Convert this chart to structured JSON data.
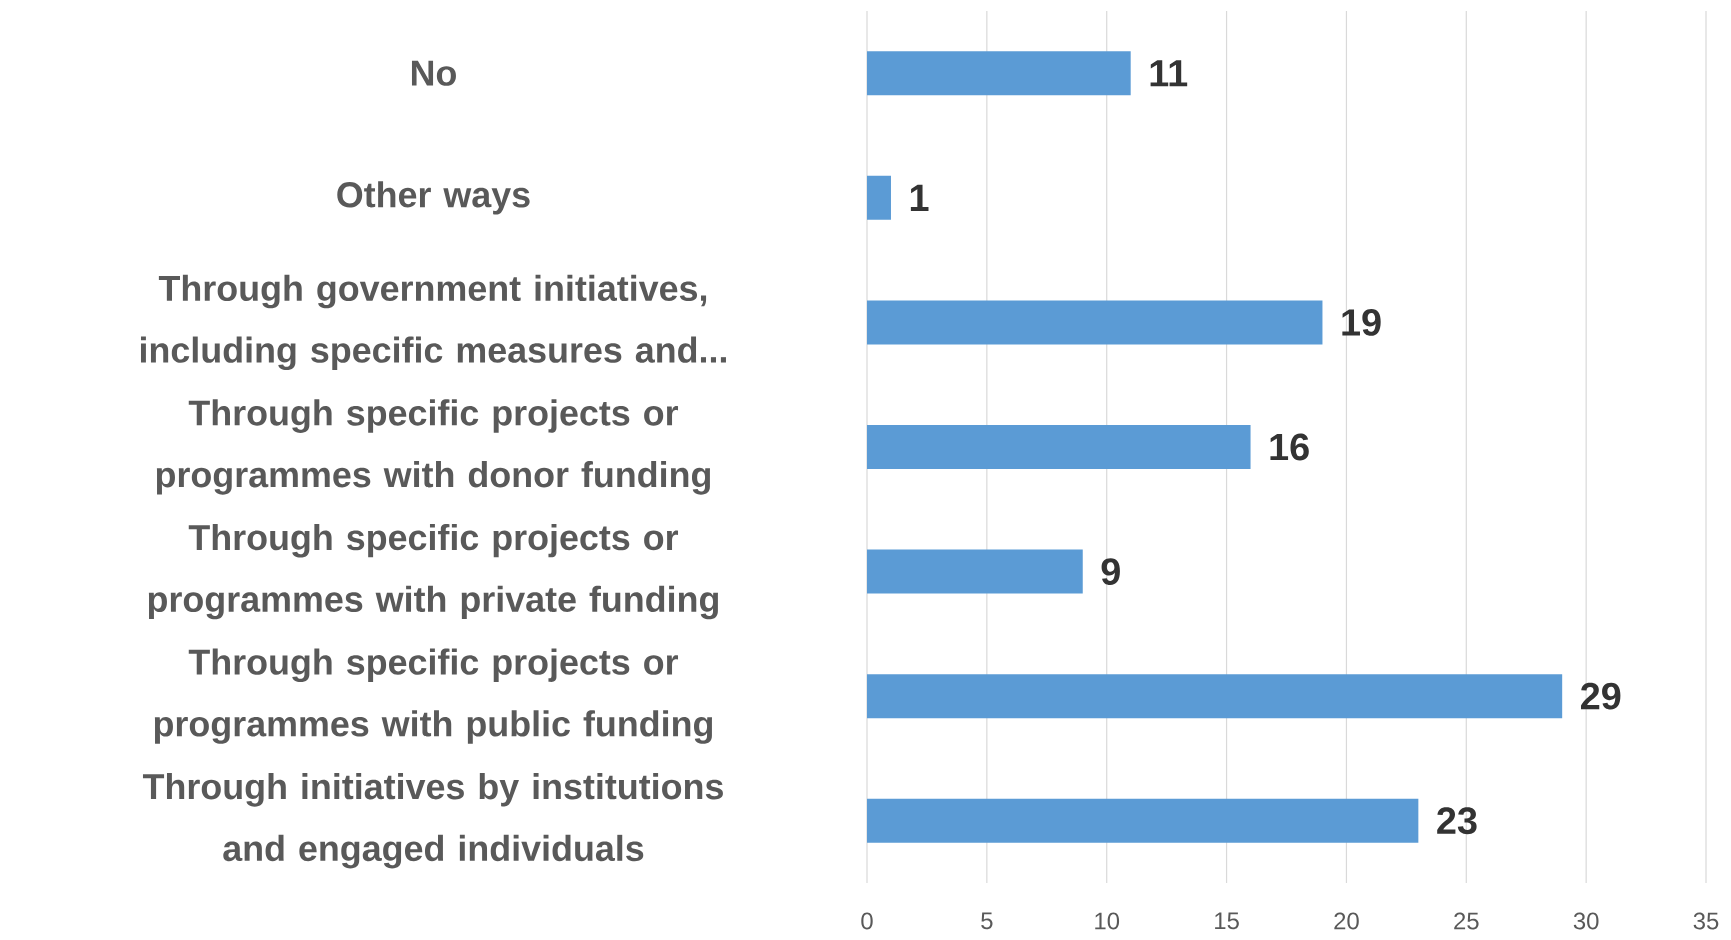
{
  "chart_data": {
    "type": "bar",
    "orientation": "horizontal",
    "categories": [
      "No",
      "Other ways",
      "Through government initiatives, including specific measures and...",
      "Through specific projects or programmes with donor funding",
      "Through specific projects or programmes with private funding",
      "Through specific projects or programmes with public funding",
      "Through initiatives by institutions and engaged individuals"
    ],
    "values": [
      11,
      1,
      19,
      16,
      9,
      29,
      23
    ],
    "color": "#5b9bd5",
    "xlim": [
      0,
      35
    ],
    "xticks": [
      0,
      5,
      10,
      15,
      20,
      25,
      30,
      35
    ],
    "grid": "x",
    "data_labels": true
  }
}
